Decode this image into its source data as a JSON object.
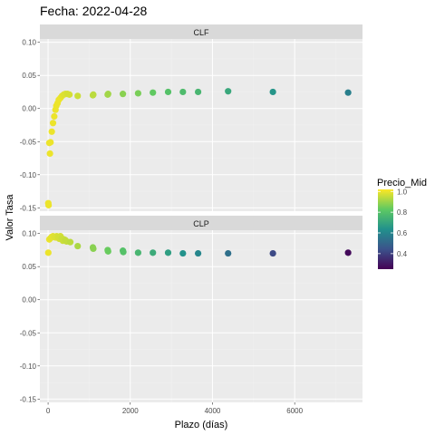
{
  "chart_data": {
    "type": "scatter",
    "title": "Fecha: 2022-04-28",
    "xlabel": "Plazo (días)",
    "ylabel": "Valor Tasa",
    "xlim": [
      -200,
      7650
    ],
    "ylim": [
      -0.155,
      0.105
    ],
    "x_ticks": [
      0,
      2000,
      4000,
      6000
    ],
    "x_tick_labels": [
      "0",
      "2000",
      "4000",
      "6000"
    ],
    "y_ticks": [
      -0.15,
      -0.1,
      -0.05,
      0.0,
      0.05,
      0.1
    ],
    "y_tick_labels": [
      "-0.15",
      "-0.10",
      "-0.05",
      "0.00",
      "0.05",
      "0.10"
    ],
    "grid": true,
    "legend": {
      "title": "Precio_Mid",
      "position": "right",
      "range": [
        0.25,
        1.02
      ],
      "ticks": [
        1.0,
        0.8,
        0.6,
        0.4
      ],
      "tick_labels": [
        "1.0",
        "0.8",
        "0.6",
        "0.4"
      ]
    },
    "facets": [
      {
        "name": "CLF",
        "points": [
          {
            "x": 5,
            "y": -0.143,
            "c": 1.0
          },
          {
            "x": 12,
            "y": -0.146,
            "c": 1.0
          },
          {
            "x": 30,
            "y": -0.052,
            "c": 1.0
          },
          {
            "x": 60,
            "y": -0.051,
            "c": 1.0
          },
          {
            "x": 45,
            "y": -0.068,
            "c": 1.0
          },
          {
            "x": 90,
            "y": -0.035,
            "c": 1.0
          },
          {
            "x": 120,
            "y": -0.022,
            "c": 1.0
          },
          {
            "x": 150,
            "y": -0.012,
            "c": 1.0
          },
          {
            "x": 180,
            "y": -0.002,
            "c": 1.0
          },
          {
            "x": 200,
            "y": 0.004,
            "c": 1.0
          },
          {
            "x": 230,
            "y": 0.008,
            "c": 1.0
          },
          {
            "x": 260,
            "y": 0.013,
            "c": 1.0
          },
          {
            "x": 300,
            "y": 0.016,
            "c": 1.0
          },
          {
            "x": 340,
            "y": 0.019,
            "c": 0.99
          },
          {
            "x": 380,
            "y": 0.021,
            "c": 0.98
          },
          {
            "x": 420,
            "y": 0.022,
            "c": 0.98
          },
          {
            "x": 470,
            "y": 0.022,
            "c": 0.97
          },
          {
            "x": 520,
            "y": 0.021,
            "c": 0.97
          },
          {
            "x": 720,
            "y": 0.019,
            "c": 0.96
          },
          {
            "x": 1090,
            "y": 0.02,
            "c": 0.94
          },
          {
            "x": 1100,
            "y": 0.021,
            "c": 0.94
          },
          {
            "x": 1450,
            "y": 0.021,
            "c": 0.91
          },
          {
            "x": 1460,
            "y": 0.022,
            "c": 0.91
          },
          {
            "x": 1820,
            "y": 0.022,
            "c": 0.88
          },
          {
            "x": 2190,
            "y": 0.023,
            "c": 0.86
          },
          {
            "x": 2550,
            "y": 0.024,
            "c": 0.83
          },
          {
            "x": 2920,
            "y": 0.025,
            "c": 0.8
          },
          {
            "x": 3280,
            "y": 0.025,
            "c": 0.78
          },
          {
            "x": 3650,
            "y": 0.025,
            "c": 0.76
          },
          {
            "x": 4380,
            "y": 0.026,
            "c": 0.71
          },
          {
            "x": 5470,
            "y": 0.025,
            "c": 0.65
          },
          {
            "x": 7300,
            "y": 0.024,
            "c": 0.58
          }
        ]
      },
      {
        "name": "CLP",
        "points": [
          {
            "x": 5,
            "y": 0.071,
            "c": 1.0
          },
          {
            "x": 30,
            "y": 0.091,
            "c": 1.0
          },
          {
            "x": 60,
            "y": 0.093,
            "c": 0.99
          },
          {
            "x": 90,
            "y": 0.095,
            "c": 0.99
          },
          {
            "x": 120,
            "y": 0.096,
            "c": 0.99
          },
          {
            "x": 150,
            "y": 0.095,
            "c": 0.98
          },
          {
            "x": 180,
            "y": 0.094,
            "c": 0.98
          },
          {
            "x": 210,
            "y": 0.096,
            "c": 0.98
          },
          {
            "x": 240,
            "y": 0.095,
            "c": 0.97
          },
          {
            "x": 270,
            "y": 0.092,
            "c": 0.97
          },
          {
            "x": 300,
            "y": 0.096,
            "c": 0.97
          },
          {
            "x": 330,
            "y": 0.093,
            "c": 0.96
          },
          {
            "x": 360,
            "y": 0.089,
            "c": 0.96
          },
          {
            "x": 390,
            "y": 0.091,
            "c": 0.96
          },
          {
            "x": 420,
            "y": 0.09,
            "c": 0.95
          },
          {
            "x": 450,
            "y": 0.088,
            "c": 0.95
          },
          {
            "x": 540,
            "y": 0.087,
            "c": 0.94
          },
          {
            "x": 720,
            "y": 0.081,
            "c": 0.92
          },
          {
            "x": 1090,
            "y": 0.079,
            "c": 0.88
          },
          {
            "x": 1100,
            "y": 0.077,
            "c": 0.88
          },
          {
            "x": 1450,
            "y": 0.075,
            "c": 0.84
          },
          {
            "x": 1460,
            "y": 0.073,
            "c": 0.84
          },
          {
            "x": 1820,
            "y": 0.074,
            "c": 0.8
          },
          {
            "x": 1830,
            "y": 0.072,
            "c": 0.8
          },
          {
            "x": 2190,
            "y": 0.071,
            "c": 0.76
          },
          {
            "x": 2550,
            "y": 0.071,
            "c": 0.72
          },
          {
            "x": 2920,
            "y": 0.071,
            "c": 0.68
          },
          {
            "x": 3280,
            "y": 0.07,
            "c": 0.64
          },
          {
            "x": 3650,
            "y": 0.07,
            "c": 0.6
          },
          {
            "x": 4380,
            "y": 0.07,
            "c": 0.53
          },
          {
            "x": 5470,
            "y": 0.07,
            "c": 0.42
          },
          {
            "x": 7300,
            "y": 0.071,
            "c": 0.27
          }
        ]
      }
    ]
  }
}
